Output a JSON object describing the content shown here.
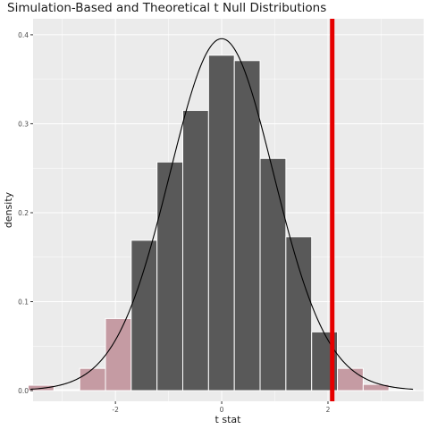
{
  "chart_data": {
    "type": "bar",
    "title": "Simulation-Based and Theoretical t Null Distributions",
    "xlabel": "t stat",
    "ylabel": "density",
    "xlim": [
      -3.55,
      3.8
    ],
    "ylim": [
      -0.012,
      0.418
    ],
    "x_ticks": [
      -2,
      0,
      2
    ],
    "x_tick_labels": [
      "-2",
      "0",
      "2"
    ],
    "y_ticks": [
      0.0,
      0.1,
      0.2,
      0.3,
      0.4
    ],
    "y_tick_labels": [
      "0.0",
      "0.1",
      "0.2",
      "0.3",
      "0.4"
    ],
    "grid": true,
    "bin_width": 0.485,
    "bins": [
      {
        "x": -3.4,
        "density": 0.006,
        "shaded": true
      },
      {
        "x": -2.915,
        "density": 0.001,
        "shaded": true
      },
      {
        "x": -2.43,
        "density": 0.025,
        "shaded": true
      },
      {
        "x": -1.945,
        "density": 0.081,
        "shaded": true
      },
      {
        "x": -1.46,
        "density": 0.169,
        "shaded": false
      },
      {
        "x": -0.975,
        "density": 0.257,
        "shaded": false
      },
      {
        "x": -0.49,
        "density": 0.315,
        "shaded": false
      },
      {
        "x": -0.005,
        "density": 0.377,
        "shaded": false
      },
      {
        "x": 0.48,
        "density": 0.371,
        "shaded": false
      },
      {
        "x": 0.965,
        "density": 0.261,
        "shaded": false
      },
      {
        "x": 1.45,
        "density": 0.173,
        "shaded": false
      },
      {
        "x": 1.935,
        "density": 0.066,
        "shaded": false
      },
      {
        "x": 2.42,
        "density": 0.025,
        "shaded": true
      },
      {
        "x": 2.905,
        "density": 0.007,
        "shaded": true
      },
      {
        "x": 3.39,
        "density": 0.001,
        "shaded": true
      }
    ],
    "theoretical_curve": {
      "distribution": "t",
      "df": 30,
      "x_range": [
        -3.6,
        3.6
      ]
    },
    "observed_stat": 2.08,
    "colors": {
      "bar": "#595959",
      "bar_outline": "#ffffff",
      "shaded_bar": "#c59ba3",
      "observed_line": "#e60000",
      "curve": "#000000",
      "panel": "#ebebeb",
      "grid": "#ffffff"
    }
  }
}
